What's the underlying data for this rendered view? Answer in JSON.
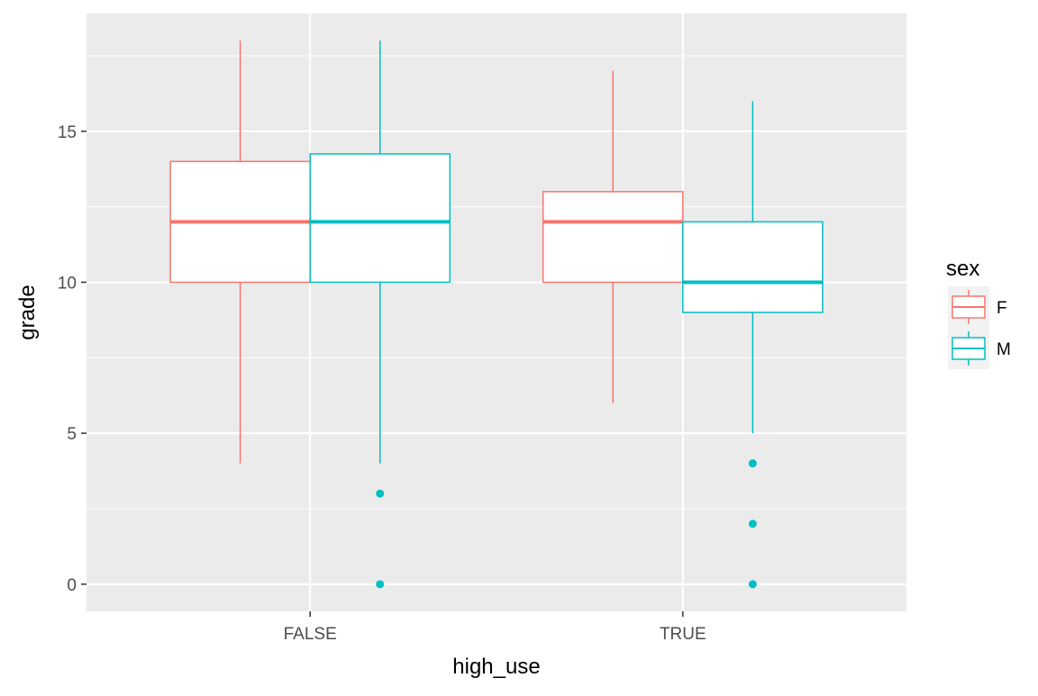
{
  "chart_data": {
    "type": "boxplot",
    "xlabel": "high_use",
    "ylabel": "grade",
    "categories": [
      "FALSE",
      "TRUE"
    ],
    "ylim": [
      -0.9,
      18.9
    ],
    "y_ticks": [
      0,
      5,
      10,
      15
    ],
    "grid": true,
    "legend": {
      "title": "sex",
      "position": "right",
      "entries": [
        "F",
        "M"
      ]
    },
    "series": [
      {
        "name": "F",
        "color": "#F8766D",
        "boxes": [
          {
            "category": "FALSE",
            "lower_whisker": 4,
            "q1": 10,
            "median": 12,
            "q3": 14,
            "upper_whisker": 18,
            "outliers": []
          },
          {
            "category": "TRUE",
            "lower_whisker": 6,
            "q1": 10,
            "median": 12,
            "q3": 13,
            "upper_whisker": 17,
            "outliers": []
          }
        ]
      },
      {
        "name": "M",
        "color": "#00BFC4",
        "boxes": [
          {
            "category": "FALSE",
            "lower_whisker": 4,
            "q1": 10,
            "median": 12,
            "q3": 14.25,
            "upper_whisker": 18,
            "outliers": [
              3,
              0
            ]
          },
          {
            "category": "TRUE",
            "lower_whisker": 5,
            "q1": 9,
            "median": 10,
            "q3": 12,
            "upper_whisker": 16,
            "outliers": [
              4,
              2,
              0
            ]
          }
        ]
      }
    ]
  }
}
